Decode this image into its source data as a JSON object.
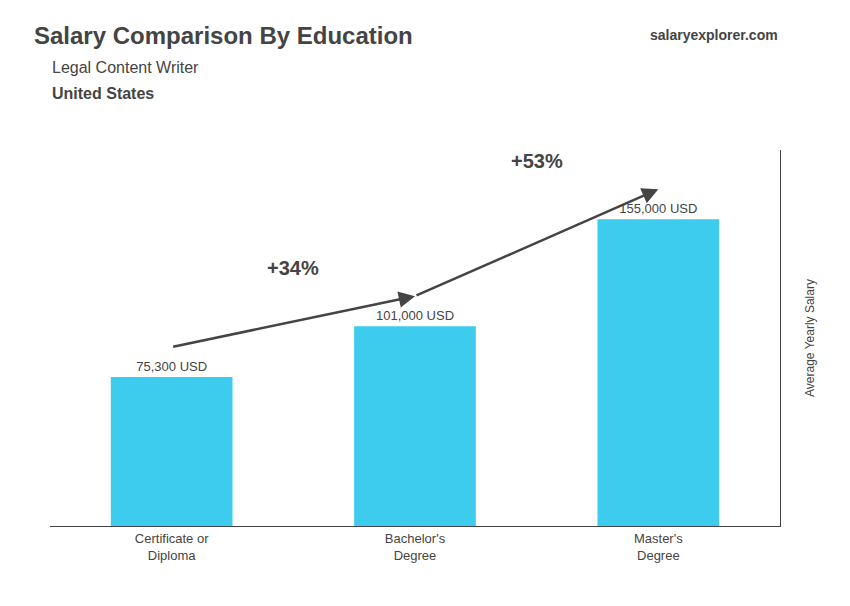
{
  "chart_data": {
    "type": "bar",
    "title": "Salary Comparison By Education",
    "subtitle": [
      "Legal Content Writer",
      "United States"
    ],
    "ylabel": "Average Yearly Salary",
    "categories": [
      "Certificate or\nDiploma",
      "Bachelor's\nDegree",
      "Master's\nDegree"
    ],
    "values": [
      75300,
      101000,
      155000
    ],
    "value_labels": [
      "75,300 USD",
      "101,000 USD",
      "155,000 USD"
    ],
    "data_labels": true,
    "color": "#3dcbee",
    "ylim": [
      0,
      190000
    ],
    "tick_labels": "x",
    "grid": false,
    "annotations": [
      {
        "text": "+34%",
        "from": 0,
        "to": 1
      },
      {
        "text": "+53%",
        "from": 1,
        "to": 2
      },
      {
        "text": "salaryexplorer.com"
      }
    ]
  }
}
